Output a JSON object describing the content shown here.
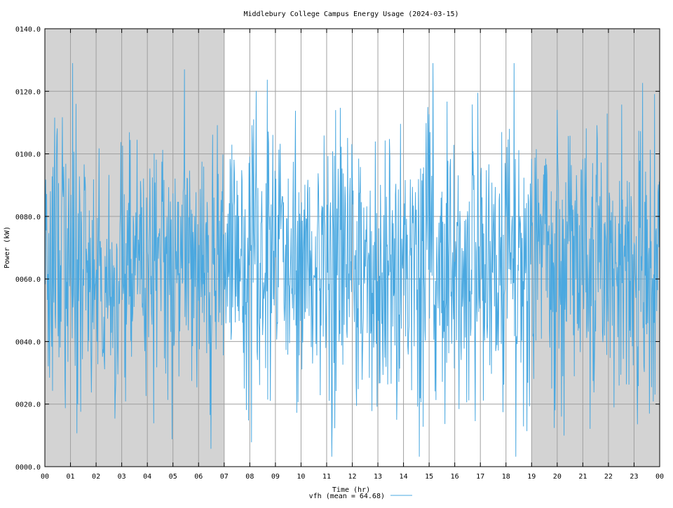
{
  "chart_data": {
    "type": "line",
    "title": "Middlebury College Campus Energy Usage (2024-03-15)",
    "xlabel": "Time (hr)",
    "ylabel": "Power (kW)",
    "xlim": [
      0,
      24
    ],
    "ylim": [
      0,
      140
    ],
    "x_tick_labels": [
      "00",
      "01",
      "02",
      "03",
      "04",
      "05",
      "06",
      "07",
      "08",
      "09",
      "10",
      "11",
      "12",
      "13",
      "14",
      "15",
      "16",
      "17",
      "18",
      "19",
      "20",
      "21",
      "22",
      "23",
      "00"
    ],
    "y_tick_values": [
      0,
      20,
      40,
      60,
      80,
      100,
      120,
      140
    ],
    "y_tick_labels": [
      "0000.0",
      "0020.0",
      "0040.0",
      "0060.0",
      "0080.0",
      "0100.0",
      "0120.0",
      "0140.0"
    ],
    "grid": true,
    "shaded_intervals": [
      [
        0,
        7
      ],
      [
        19,
        24
      ]
    ],
    "colors": {
      "series": "#4aa8e0",
      "shade": "#d3d3d3",
      "grid": "#a0a0a0",
      "axis": "#000000",
      "background": "#ffffff"
    },
    "legend": {
      "placement": "bottom-center",
      "label": "vfh (mean = 64.68)"
    },
    "series": [
      {
        "name": "vfh",
        "mean": 64.68,
        "samples_per_hour": 60,
        "sampling_note_hidden": true,
        "x_start": 0,
        "x_end": 24,
        "value_summary": {
          "mean": 64.68,
          "min": 2,
          "max": 129
        }
      }
    ]
  }
}
